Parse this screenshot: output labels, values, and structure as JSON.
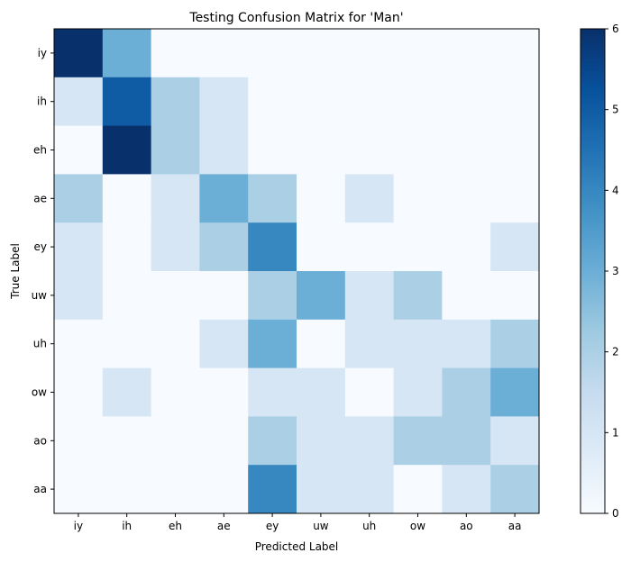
{
  "chart_data": {
    "type": "heatmap",
    "title": "Testing Confusion Matrix for 'Man'",
    "xlabel": "Predicted Label",
    "ylabel": "True Label",
    "x_categories": [
      "iy",
      "ih",
      "eh",
      "ae",
      "ey",
      "uw",
      "uh",
      "ow",
      "ao",
      "aa"
    ],
    "y_categories": [
      "iy",
      "ih",
      "eh",
      "ae",
      "ey",
      "uw",
      "uh",
      "ow",
      "ao",
      "aa"
    ],
    "matrix": [
      [
        6,
        3,
        0,
        0,
        0,
        0,
        0,
        0,
        0,
        0
      ],
      [
        1,
        5,
        2,
        1,
        0,
        0,
        0,
        0,
        0,
        0
      ],
      [
        0,
        6,
        2,
        1,
        0,
        0,
        0,
        0,
        0,
        0
      ],
      [
        2,
        0,
        1,
        3,
        2,
        0,
        1,
        0,
        0,
        0
      ],
      [
        1,
        0,
        1,
        2,
        4,
        0,
        0,
        0,
        0,
        1
      ],
      [
        1,
        0,
        0,
        0,
        2,
        3,
        1,
        2,
        0,
        0
      ],
      [
        0,
        0,
        0,
        1,
        3,
        0,
        1,
        1,
        1,
        2
      ],
      [
        0,
        1,
        0,
        0,
        1,
        1,
        0,
        1,
        2,
        3
      ],
      [
        0,
        0,
        0,
        0,
        2,
        1,
        1,
        2,
        2,
        1
      ],
      [
        0,
        0,
        0,
        0,
        4,
        1,
        1,
        0,
        1,
        2
      ]
    ],
    "colormap": "Blues",
    "colorbar": {
      "range": [
        0,
        6
      ],
      "ticks": [
        "0",
        "1",
        "2",
        "3",
        "4",
        "5",
        "6"
      ]
    }
  }
}
